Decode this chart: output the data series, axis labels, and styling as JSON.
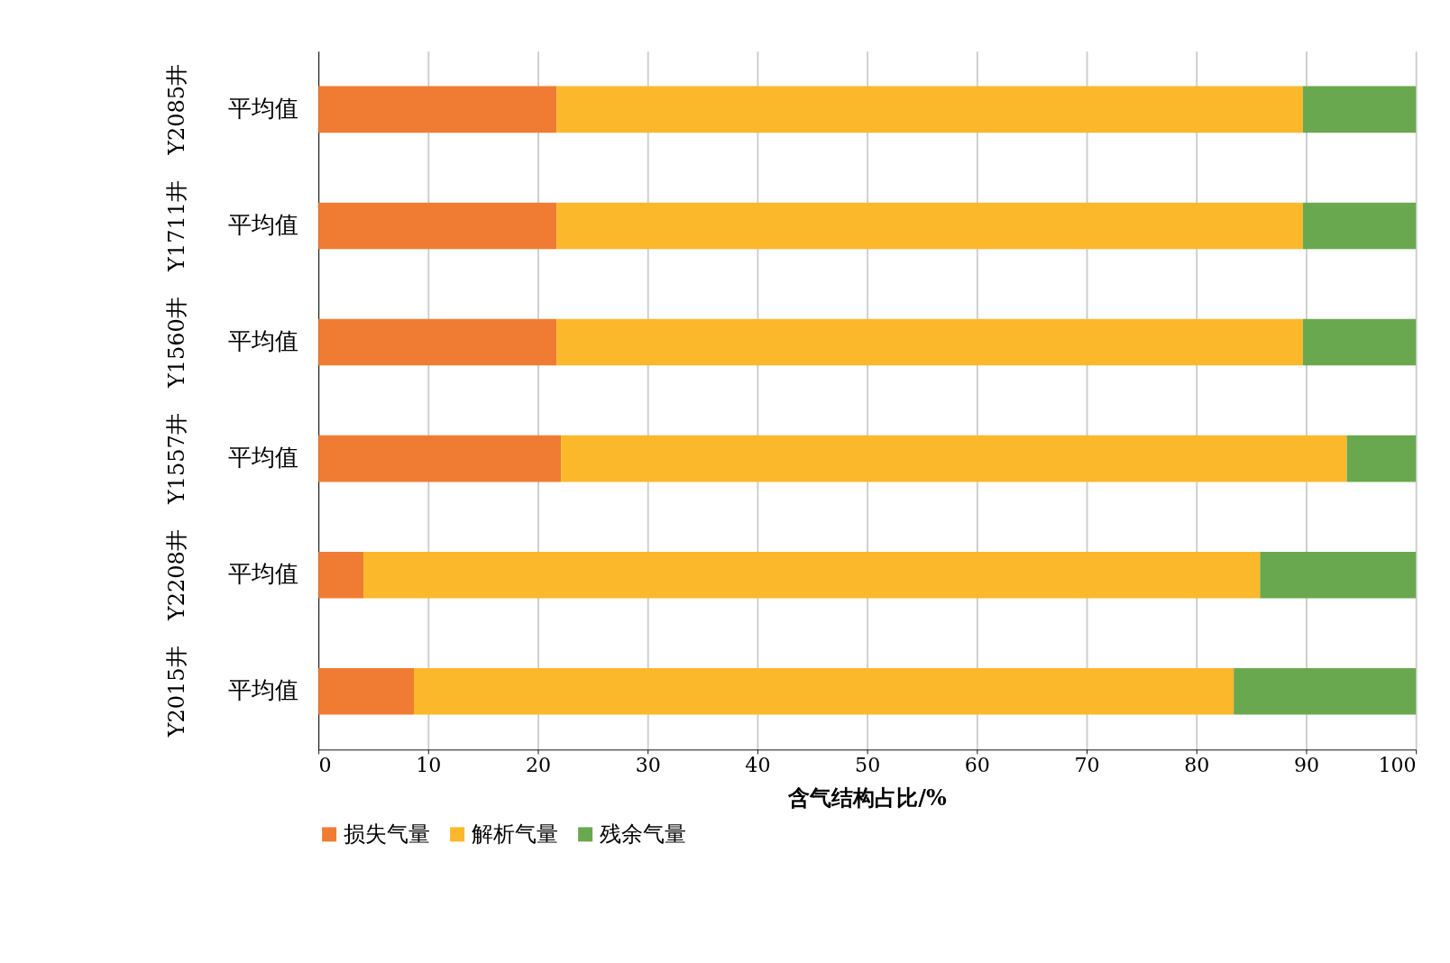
{
  "chart_data": {
    "type": "bar",
    "orientation": "horizontal",
    "stacked": true,
    "categories": [
      "平均值",
      "平均值",
      "平均值",
      "平均值",
      "平均值",
      "平均值"
    ],
    "series": [
      {
        "name": "损失气量",
        "color": "#f07c33",
        "values": [
          21.7,
          21.7,
          21.7,
          22.1,
          4.1,
          8.7
        ]
      },
      {
        "name": "解析气量",
        "color": "#fbb82a",
        "values": [
          68.0,
          68.0,
          68.0,
          71.6,
          81.7,
          74.7
        ]
      },
      {
        "name": "残余气量",
        "color": "#6aa84f",
        "values": [
          10.3,
          10.3,
          10.3,
          6.3,
          14.2,
          16.6
        ]
      }
    ],
    "xlabel": "含气结构占比/%",
    "xlim": [
      0,
      100
    ],
    "xticks": [
      0,
      10,
      20,
      30,
      40,
      50,
      60,
      70,
      80,
      90,
      100
    ],
    "grid": "x",
    "legend": "bottom",
    "annotations": [
      "Y2085井",
      "Y1711井",
      "Y1560井",
      "Y1557井",
      "Y2208井",
      "Y2015井"
    ]
  }
}
